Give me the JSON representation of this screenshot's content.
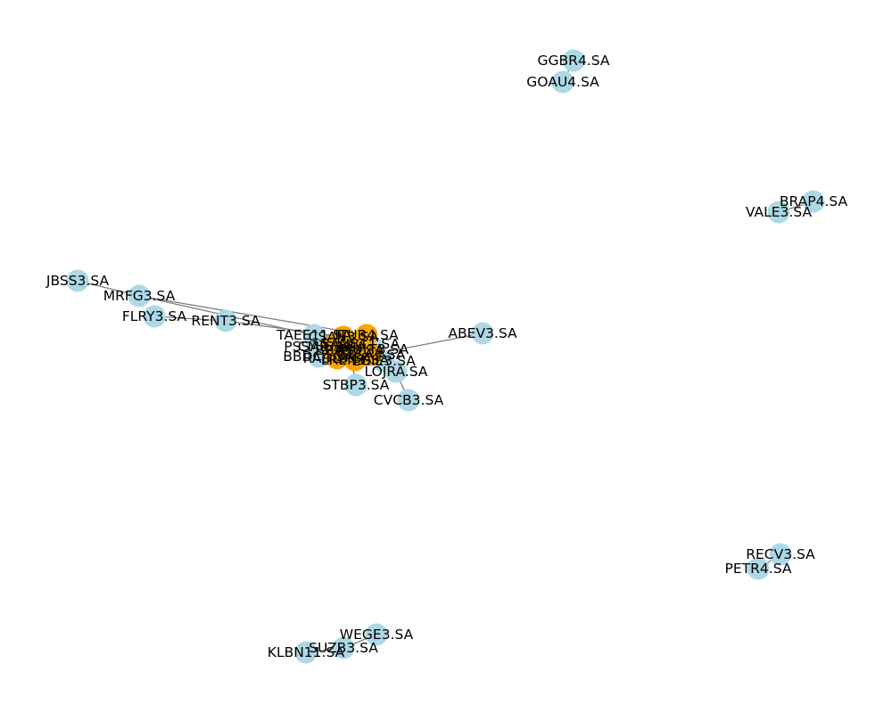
{
  "colors": {
    "node_default": "#add8e6",
    "node_highlight": "#ffa500",
    "edge": "#808080",
    "label": "#000000",
    "background": "#ffffff"
  },
  "graph": {
    "nodes": [
      {
        "id": "GGBR4.SA",
        "label": "GGBR4.SA",
        "color": "node_default"
      },
      {
        "id": "GOAU4.SA",
        "label": "GOAU4.SA",
        "color": "node_default"
      },
      {
        "id": "BRAP4.SA",
        "label": "BRAP4.SA",
        "color": "node_default"
      },
      {
        "id": "VALE3.SA",
        "label": "VALE3.SA",
        "color": "node_default"
      },
      {
        "id": "JBSS3.SA",
        "label": "JBSS3.SA",
        "color": "node_default"
      },
      {
        "id": "MRFG3.SA",
        "label": "MRFG3.SA",
        "color": "node_default"
      },
      {
        "id": "FLRY3.SA",
        "label": "FLRY3.SA",
        "color": "node_default"
      },
      {
        "id": "RENT3.SA",
        "label": "RENT3.SA",
        "color": "node_default"
      },
      {
        "id": "TAEE11.SA",
        "label": "TAEE11.SA",
        "color": "node_default"
      },
      {
        "id": "PSSA3.SA",
        "label": "PSSA3.SA",
        "color": "node_default"
      },
      {
        "id": "BBDC4.SA",
        "label": "BBDC4.SA",
        "color": "node_default"
      },
      {
        "id": "ABEV3.SA",
        "label": "ABEV3.SA",
        "color": "node_default"
      },
      {
        "id": "STBP3.SA",
        "label": "STBP3.SA",
        "color": "node_default"
      },
      {
        "id": "CVCB3.SA",
        "label": "CVCB3.SA",
        "color": "node_default"
      },
      {
        "id": "LOJRA.SA",
        "label": "LOJRA.SA",
        "color": "node_default"
      },
      {
        "id": "EGIE3.SA",
        "label": "EGIE3.SA",
        "color": "node_default"
      },
      {
        "id": "MULT3.SA",
        "label": "MULT3.SA",
        "color": "node_default"
      },
      {
        "id": "CSAN3.SA",
        "label": "CSAN3.SA",
        "color": "node_highlight"
      },
      {
        "id": "ITUB4.SA",
        "label": "ITUB4.SA",
        "color": "node_highlight"
      },
      {
        "id": "BBAS3.SA",
        "label": "BBAS3.SA",
        "color": "node_highlight"
      },
      {
        "id": "SANB11.SA",
        "label": "SANB11.SA",
        "color": "node_highlight"
      },
      {
        "id": "B3SA3.SA",
        "label": "B3SA3.SA",
        "color": "node_highlight"
      },
      {
        "id": "RADL3.SA",
        "label": "RADL3.SA",
        "color": "node_highlight"
      },
      {
        "id": "LREN3.SA",
        "label": "LREN3.SA",
        "color": "node_highlight"
      },
      {
        "id": "CMIG4.SA",
        "label": "CMIG4.SA",
        "color": "node_highlight"
      },
      {
        "id": "RECV3.SA",
        "label": "RECV3.SA",
        "color": "node_default"
      },
      {
        "id": "PETR4.SA",
        "label": "PETR4.SA",
        "color": "node_default"
      },
      {
        "id": "WEGE3.SA",
        "label": "WEGE3.SA",
        "color": "node_default"
      },
      {
        "id": "SUZB3.SA",
        "label": "SUZB3.SA",
        "color": "node_default"
      },
      {
        "id": "KLBN11.SA",
        "label": "KLBN11.SA",
        "color": "node_default"
      }
    ],
    "edges": [
      {
        "source": "GGBR4.SA",
        "target": "GOAU4.SA"
      },
      {
        "source": "BRAP4.SA",
        "target": "VALE3.SA"
      },
      {
        "source": "RECV3.SA",
        "target": "PETR4.SA"
      },
      {
        "source": "WEGE3.SA",
        "target": "SUZB3.SA"
      },
      {
        "source": "SUZB3.SA",
        "target": "KLBN11.SA"
      },
      {
        "source": "JBSS3.SA",
        "target": "MRFG3.SA"
      },
      {
        "source": "MRFG3.SA",
        "target": "TAEE11.SA"
      },
      {
        "source": "FLRY3.SA",
        "target": "RENT3.SA"
      },
      {
        "source": "RENT3.SA",
        "target": "CSAN3.SA"
      },
      {
        "source": "MRFG3.SA",
        "target": "ITUB4.SA"
      },
      {
        "source": "ABEV3.SA",
        "target": "B3SA3.SA"
      },
      {
        "source": "CVCB3.SA",
        "target": "LOJRA.SA"
      },
      {
        "source": "STBP3.SA",
        "target": "BBAS3.SA"
      },
      {
        "source": "TAEE11.SA",
        "target": "CSAN3.SA"
      },
      {
        "source": "PSSA3.SA",
        "target": "ITUB4.SA"
      },
      {
        "source": "BBDC4.SA",
        "target": "BBAS3.SA"
      },
      {
        "source": "EGIE3.SA",
        "target": "CMIG4.SA"
      },
      {
        "source": "MULT3.SA",
        "target": "LREN3.SA"
      },
      {
        "source": "ITUB4.SA",
        "target": "BBAS3.SA"
      },
      {
        "source": "BBAS3.SA",
        "target": "SANB11.SA"
      },
      {
        "source": "SANB11.SA",
        "target": "B3SA3.SA"
      },
      {
        "source": "B3SA3.SA",
        "target": "RADL3.SA"
      },
      {
        "source": "RADL3.SA",
        "target": "LREN3.SA"
      },
      {
        "source": "LREN3.SA",
        "target": "CMIG4.SA"
      },
      {
        "source": "CSAN3.SA",
        "target": "ITUB4.SA"
      },
      {
        "source": "CMIG4.SA",
        "target": "LOJRA.SA"
      }
    ]
  }
}
